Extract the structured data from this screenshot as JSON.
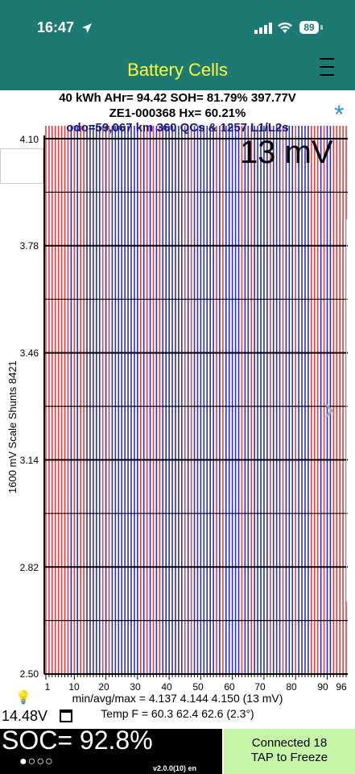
{
  "status_bar": {
    "time": "16:47",
    "battery": "89"
  },
  "header": {
    "title": "Battery Cells"
  },
  "info": {
    "line1": "40 kWh  AHr= 94.42  SOH= 81.79%   397.77V",
    "line2": "ZE1-000368   Hx= 60.21%",
    "line3": "odo=59,067 km 360 QCs & 1257 L1/L2s"
  },
  "delta_display": "13 mV",
  "chart_data": {
    "type": "bar",
    "ylabel": "1600 mV Scale   Shunts 8421",
    "ylim": [
      2.5,
      4.1
    ],
    "y_ticks": [
      "4.10",
      "3.78",
      "3.46",
      "3.14",
      "2.82",
      "2.50"
    ],
    "x_ticks": [
      "1",
      "10",
      "20",
      "30",
      "40",
      "50",
      "60",
      "70",
      "80",
      "90",
      "96"
    ],
    "cell_count": 96,
    "min": 4.137,
    "avg": 4.144,
    "max": 4.15,
    "shunted_cells": [
      1,
      2,
      3,
      4,
      5,
      6,
      7,
      8,
      10,
      12,
      13,
      19,
      21,
      31,
      33,
      35,
      37,
      45,
      47,
      55,
      57,
      63,
      66,
      72,
      76,
      80,
      85,
      86,
      87,
      89,
      92,
      93,
      94,
      95,
      96
    ],
    "colors": {
      "cell": "#2c2cc8",
      "shunt": "#e04040",
      "grid": "#000000"
    }
  },
  "stats": {
    "line1": "min/avg/max = 4.137 4.144 4.150  (13 mV)",
    "line2": "Temp F = 60.3  62.4  62.6  (2.3°)"
  },
  "footer": {
    "voltage": "14.48V",
    "soc": "SOC= 92.8%",
    "dots": "●○○○",
    "version": "v2.0.0(10) en",
    "connect_line1": "Connected 18",
    "connect_line2": "TAP to Freeze"
  }
}
